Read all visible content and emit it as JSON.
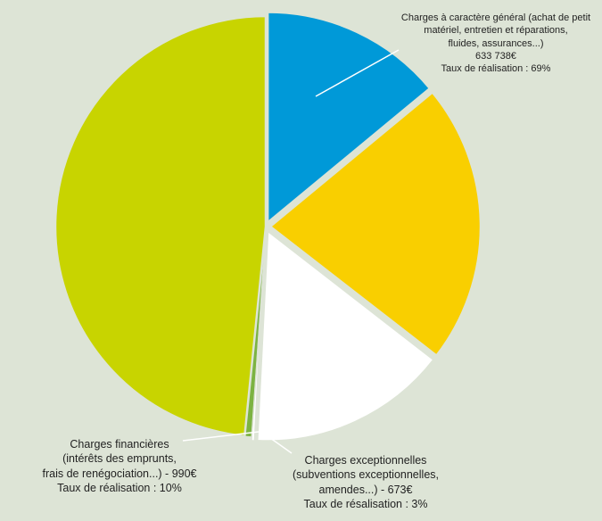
{
  "chart_data": {
    "type": "pie",
    "title": "",
    "slices": [
      {
        "label_lines": [
          "Charges à caractère général (achat de petit",
          "matériel, entretien et réparations,",
          "fluides, assurances...)",
          "633 738€",
          "Taux de réalisation : 69%"
        ],
        "value": 14.0,
        "color": "#0099d8"
      },
      {
        "label_lines": [],
        "value": 21.5,
        "color": "#f9cf00"
      },
      {
        "label_lines": [],
        "value": 15.3,
        "color": "#ffffff"
      },
      {
        "label_lines": [
          "Charges exceptionnelles",
          "(subventions exceptionnelles,",
          "amendes...) - 673€",
          "Taux de résalisation : 3%"
        ],
        "value": 0.3,
        "color": "#ffffff"
      },
      {
        "label_lines": [
          "Charges financières",
          "(intérêts des emprunts,",
          "frais de renégociation...) - 990€",
          "Taux de réalisation : 10%"
        ],
        "value": 0.5,
        "color": "#7cb342"
      },
      {
        "label_lines": [],
        "value": 48.4,
        "color": "#c8d400"
      }
    ]
  }
}
